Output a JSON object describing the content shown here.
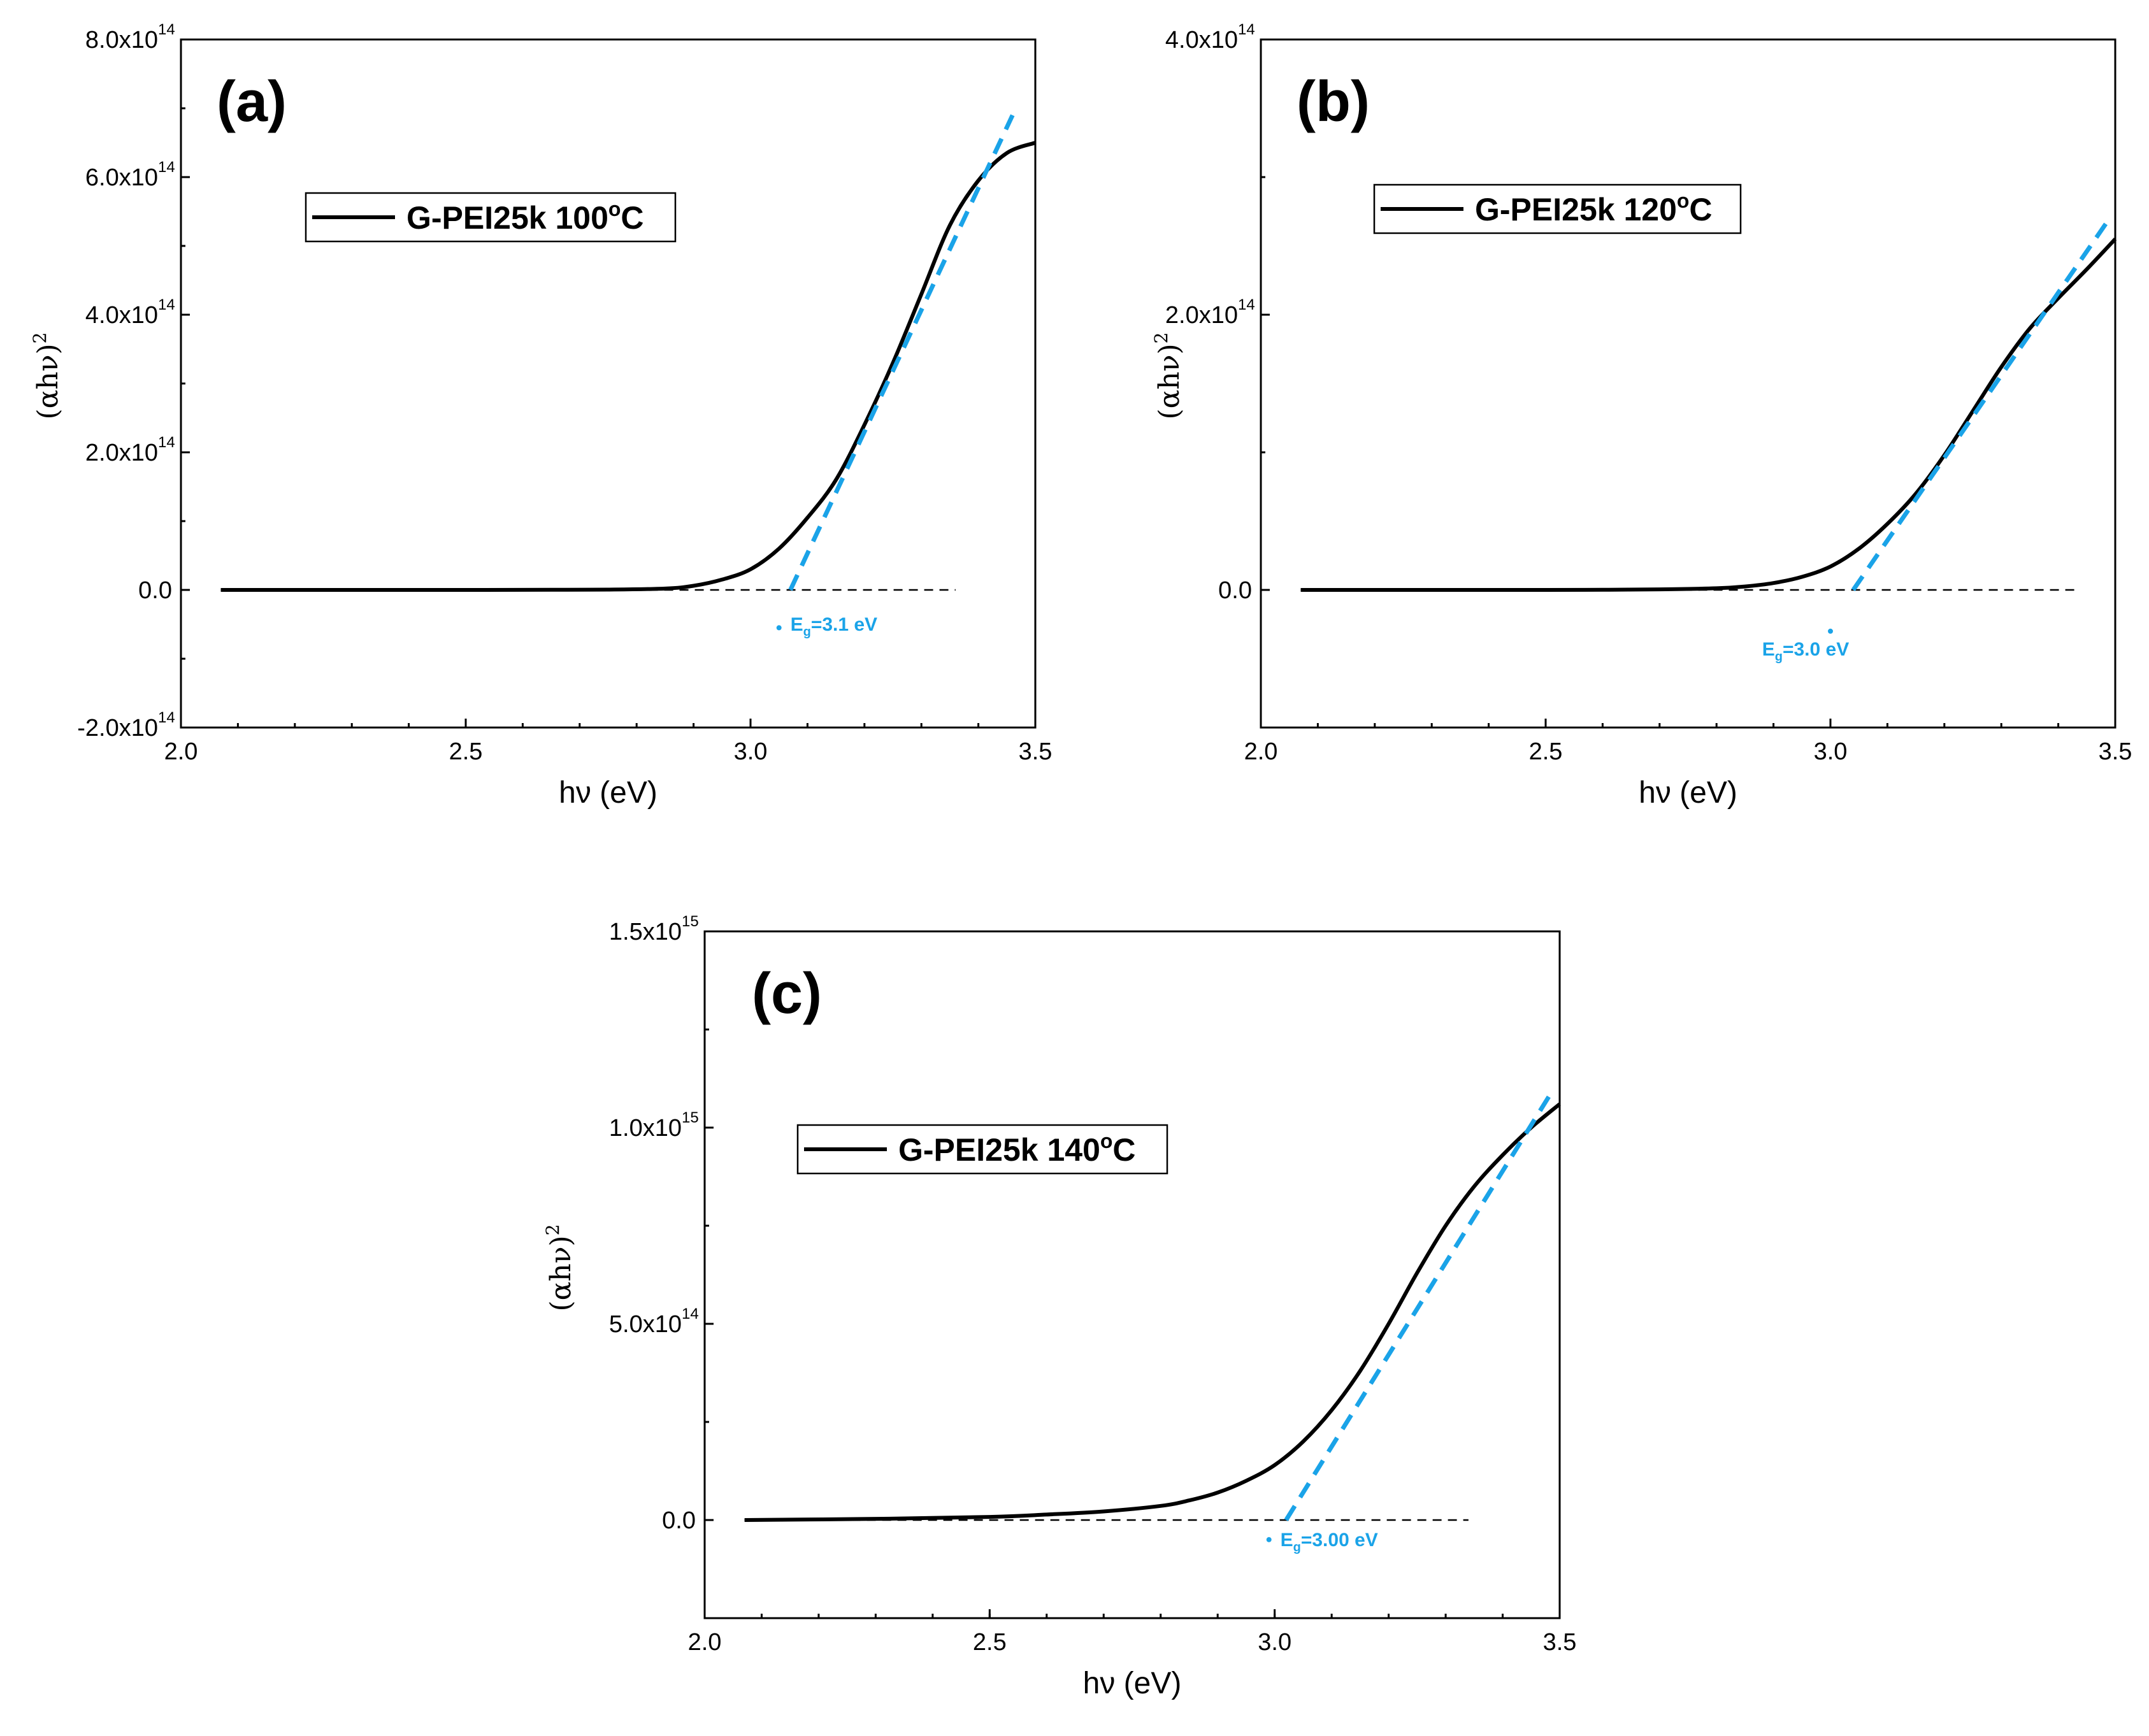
{
  "colors": {
    "curve": "#000000",
    "fit": "#1aa3e8",
    "baseline": "#000000"
  },
  "chart_data": [
    {
      "type": "line",
      "panel_label": "(a)",
      "xlabel": "hν (eV)",
      "ylabel_base": "(αhν)",
      "ylabel_exp": "2",
      "xlim": [
        2.0,
        3.5
      ],
      "ylim": [
        -200000000000000.0,
        800000000000000.0
      ],
      "xticks": [
        2.0,
        2.5,
        3.0,
        3.5
      ],
      "xtick_labels": [
        "2.0",
        "2.5",
        "3.0",
        "3.5"
      ],
      "yticks": [
        {
          "value": -200000000000000.0,
          "mant": "-2.0x10",
          "exp": "14"
        },
        {
          "value": 0,
          "mant": "0.0",
          "exp": ""
        },
        {
          "value": 200000000000000.0,
          "mant": "2.0x10",
          "exp": "14"
        },
        {
          "value": 400000000000000.0,
          "mant": "4.0x10",
          "exp": "14"
        },
        {
          "value": 600000000000000.0,
          "mant": "6.0x10",
          "exp": "14"
        },
        {
          "value": 800000000000000.0,
          "mant": "8.0x10",
          "exp": "14"
        }
      ],
      "legend": "G-PEI25k 100",
      "legend_deg": "o",
      "legend_unit": "C",
      "series": {
        "name": "G-PEI25k 100°C",
        "x": [
          2.07,
          2.3,
          2.5,
          2.65,
          2.75,
          2.85,
          2.9,
          2.95,
          3.0,
          3.05,
          3.1,
          3.15,
          3.2,
          3.25,
          3.3,
          3.35,
          3.4,
          3.45,
          3.5
        ],
        "y": [
          0,
          0,
          0,
          200000000000.0,
          500000000000.0,
          2000000000000.0,
          6000000000000.0,
          15000000000000.0,
          30000000000000.0,
          60000000000000.0,
          105000000000000.0,
          160000000000000.0,
          240000000000000.0,
          330000000000000.0,
          430000000000000.0,
          530000000000000.0,
          595000000000000.0,
          635000000000000.0,
          650000000000000.0
        ]
      },
      "fit": {
        "x": [
          3.07,
          3.46
        ],
        "y": [
          0,
          690000000000000.0
        ]
      },
      "fit_dot": {
        "x": 3.05,
        "y": -55000000000000.0
      },
      "baseline": {
        "x": [
          2.07,
          3.36
        ],
        "y": 0
      },
      "annotation": {
        "main": "E",
        "sub": "g",
        "rest": "=3.1 eV",
        "x": 3.07,
        "y": -50000000000000.0
      }
    },
    {
      "type": "line",
      "panel_label": "(b)",
      "xlabel": "hν (eV)",
      "ylabel_base": "(αhν)",
      "ylabel_exp": "2",
      "xlim": [
        2.0,
        3.5
      ],
      "ylim": [
        -100000000000000.0,
        400000000000000.0
      ],
      "xticks": [
        2.0,
        2.5,
        3.0,
        3.5
      ],
      "xtick_labels": [
        "2.0",
        "2.5",
        "3.0",
        "3.5"
      ],
      "yticks": [
        {
          "value": 0,
          "mant": "0.0",
          "exp": ""
        },
        {
          "value": 200000000000000.0,
          "mant": "2.0x10",
          "exp": "14"
        },
        {
          "value": 400000000000000.0,
          "mant": "4.0x10",
          "exp": "14"
        }
      ],
      "legend": "G-PEI25k 120",
      "legend_deg": "o",
      "legend_unit": "C",
      "series": {
        "name": "G-PEI25k 120°C",
        "x": [
          2.07,
          2.3,
          2.5,
          2.6,
          2.7,
          2.8,
          2.85,
          2.9,
          2.95,
          3.0,
          3.05,
          3.1,
          3.15,
          3.2,
          3.25,
          3.3,
          3.35,
          3.4,
          3.45,
          3.5
        ],
        "y": [
          0,
          0,
          0,
          100000000000.0,
          400000000000.0,
          1200000000000.0,
          2500000000000.0,
          5000000000000.0,
          9500000000000.0,
          17000000000000.0,
          30000000000000.0,
          48000000000000.0,
          70000000000000.0,
          98000000000000.0,
          130000000000000.0,
          162000000000000.0,
          190000000000000.0,
          212000000000000.0,
          233000000000000.0,
          255000000000000.0
        ]
      },
      "fit": {
        "x": [
          3.04,
          3.49
        ],
        "y": [
          0,
          270000000000000.0
        ]
      },
      "fit_dot": {
        "x": 3.0,
        "y": -30000000000000.0
      },
      "baseline": {
        "x": [
          2.07,
          3.43
        ],
        "y": 0
      },
      "annotation": {
        "main": "E",
        "sub": "g",
        "rest": "=3.0 eV",
        "x": 2.88,
        "y": -43000000000000.0
      }
    },
    {
      "type": "line",
      "panel_label": "(c)",
      "xlabel": "hν (eV)",
      "ylabel_base": "(αhν)",
      "ylabel_exp": "2",
      "xlim": [
        2.0,
        3.5
      ],
      "ylim": [
        -250000000000000.0,
        1500000000000000.0
      ],
      "xticks": [
        2.0,
        2.5,
        3.0,
        3.5
      ],
      "xtick_labels": [
        "2.0",
        "2.5",
        "3.0",
        "3.5"
      ],
      "yticks": [
        {
          "value": 0,
          "mant": "0.0",
          "exp": ""
        },
        {
          "value": 500000000000000.0,
          "mant": "5.0x10",
          "exp": "14"
        },
        {
          "value": 1000000000000000.0,
          "mant": "1.0x10",
          "exp": "15"
        },
        {
          "value": 1500000000000000.0,
          "mant": "1.5x10",
          "exp": "15"
        }
      ],
      "legend": "G-PEI25k 140",
      "legend_deg": "o",
      "legend_unit": "C",
      "series": {
        "name": "G-PEI25k 140°C",
        "x": [
          2.07,
          2.3,
          2.5,
          2.6,
          2.7,
          2.8,
          2.85,
          2.9,
          2.95,
          3.0,
          3.05,
          3.1,
          3.15,
          3.2,
          3.25,
          3.3,
          3.35,
          3.4,
          3.45,
          3.5
        ],
        "y": [
          0,
          3000000000000.0,
          8000000000000.0,
          14000000000000.0,
          22000000000000.0,
          36000000000000.0,
          50000000000000.0,
          70000000000000.0,
          100000000000000.0,
          140000000000000.0,
          200000000000000.0,
          280000000000000.0,
          380000000000000.0,
          500000000000000.0,
          630000000000000.0,
          750000000000000.0,
          850000000000000.0,
          930000000000000.0,
          1000000000000000.0,
          1060000000000000.0
        ]
      },
      "fit": {
        "x": [
          3.02,
          3.49
        ],
        "y": [
          0,
          1100000000000000.0
        ]
      },
      "fit_dot": {
        "x": 2.99,
        "y": -50000000000000.0
      },
      "baseline": {
        "x": [
          2.07,
          3.34
        ],
        "y": 0
      },
      "annotation": {
        "main": "E",
        "sub": "g",
        "rest": "=3.00 eV",
        "x": 3.01,
        "y": -50000000000000.0
      }
    }
  ]
}
